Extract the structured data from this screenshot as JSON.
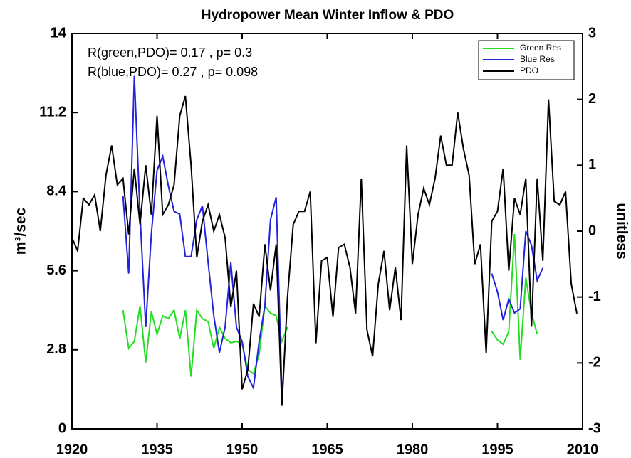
{
  "chart_data": {
    "type": "line",
    "title": "Hydropower Mean Winter Inflow & PDO",
    "y_label": "m³/sec",
    "y2_label": "unitless",
    "annotations": [
      "R(green,PDO)= 0.17 , p= 0.3",
      "R(blue,PDO)= 0.27 , p= 0.098"
    ],
    "legend": "upper right",
    "xlim": [
      1920,
      2010
    ],
    "xticks": [
      1920,
      1935,
      1950,
      1965,
      1980,
      1995,
      2010
    ],
    "ylim": [
      0,
      14
    ],
    "yticks": [
      0,
      2.8,
      5.6,
      8.4,
      11.2,
      14
    ],
    "y2lim": [
      -3,
      3
    ],
    "y2ticks": [
      -3,
      -2,
      -1,
      0,
      1,
      2,
      3
    ],
    "x": [
      1920,
      1921,
      1922,
      1923,
      1924,
      1925,
      1926,
      1927,
      1928,
      1929,
      1930,
      1931,
      1932,
      1933,
      1934,
      1935,
      1936,
      1937,
      1938,
      1939,
      1940,
      1941,
      1942,
      1943,
      1944,
      1945,
      1946,
      1947,
      1948,
      1949,
      1950,
      1951,
      1952,
      1953,
      1954,
      1955,
      1956,
      1957,
      1958,
      1959,
      1960,
      1961,
      1962,
      1963,
      1964,
      1965,
      1966,
      1967,
      1968,
      1969,
      1970,
      1971,
      1972,
      1973,
      1974,
      1975,
      1976,
      1977,
      1978,
      1979,
      1980,
      1981,
      1982,
      1983,
      1984,
      1985,
      1986,
      1987,
      1988,
      1989,
      1990,
      1991,
      1992,
      1993,
      1994,
      1995,
      1996,
      1997,
      1998,
      1999,
      2000,
      2001,
      2002,
      2003,
      2004,
      2005,
      2006,
      2007,
      2008,
      2009
    ],
    "series": [
      {
        "name": "Green Res",
        "color": "#22dd22",
        "values": [
          null,
          null,
          null,
          null,
          null,
          null,
          null,
          null,
          null,
          4.2,
          2.85,
          3.1,
          4.35,
          2.35,
          4.15,
          3.35,
          4.0,
          3.9,
          4.2,
          3.2,
          4.2,
          1.85,
          4.2,
          3.9,
          3.8,
          2.85,
          3.6,
          3.2,
          3.05,
          3.1,
          3.0,
          2.1,
          1.95,
          2.65,
          4.35,
          4.1,
          4.0,
          3.1,
          3.6,
          null,
          null,
          null,
          null,
          null,
          null,
          null,
          null,
          null,
          null,
          null,
          null,
          null,
          null,
          null,
          null,
          null,
          null,
          null,
          null,
          null,
          null,
          null,
          null,
          null,
          null,
          null,
          null,
          null,
          null,
          null,
          null,
          null,
          null,
          null,
          3.45,
          3.15,
          3.0,
          3.45,
          6.9,
          2.45,
          5.35,
          4.1,
          3.35,
          null,
          null,
          null,
          null,
          null,
          null,
          null
        ]
      },
      {
        "name": "Blue Res",
        "color": "#2222dd",
        "values": [
          null,
          null,
          null,
          null,
          null,
          null,
          null,
          null,
          null,
          8.25,
          5.5,
          12.5,
          7.6,
          3.6,
          6.9,
          9.15,
          9.65,
          8.6,
          7.7,
          7.6,
          6.1,
          6.1,
          7.4,
          7.9,
          5.9,
          4.0,
          2.7,
          3.6,
          5.9,
          3.6,
          3.1,
          1.85,
          1.45,
          3.1,
          4.35,
          7.4,
          8.2,
          1.35,
          null,
          null,
          null,
          null,
          null,
          null,
          null,
          null,
          null,
          null,
          null,
          null,
          null,
          null,
          null,
          null,
          null,
          null,
          null,
          null,
          null,
          null,
          null,
          null,
          null,
          null,
          null,
          null,
          null,
          null,
          null,
          null,
          null,
          null,
          null,
          null,
          5.5,
          4.85,
          3.85,
          4.6,
          4.1,
          4.25,
          7.0,
          6.5,
          5.25,
          5.7,
          null,
          null,
          null,
          null,
          null,
          null
        ]
      },
      {
        "name": "PDO",
        "color": "#000000",
        "axis": "y2",
        "values": [
          -0.1,
          -0.3,
          0.5,
          0.4,
          0.55,
          0.0,
          0.85,
          1.3,
          0.7,
          0.8,
          -0.05,
          0.95,
          0.1,
          1.0,
          0.25,
          1.75,
          0.25,
          0.4,
          0.7,
          1.75,
          2.05,
          1.0,
          -0.4,
          0.15,
          0.4,
          0.0,
          0.25,
          -0.1,
          -1.15,
          -0.6,
          -2.4,
          -2.1,
          -1.1,
          -1.3,
          -0.2,
          -0.9,
          -0.2,
          -2.65,
          -1.0,
          0.1,
          0.3,
          0.3,
          0.6,
          -1.7,
          -0.45,
          -0.4,
          -1.3,
          -0.25,
          -0.2,
          -0.55,
          -1.25,
          0.8,
          -1.5,
          -1.9,
          -0.8,
          -0.3,
          -1.2,
          -0.55,
          -1.35,
          1.3,
          -0.5,
          0.25,
          0.65,
          0.4,
          0.8,
          1.45,
          1.0,
          1.0,
          1.8,
          1.25,
          0.85,
          -0.5,
          -0.2,
          -1.85,
          0.15,
          0.3,
          0.95,
          -0.6,
          0.5,
          0.25,
          0.8,
          -1.45,
          0.8,
          -0.45,
          2.0,
          0.45,
          0.4,
          0.6,
          -0.8,
          -1.25
        ]
      }
    ]
  }
}
